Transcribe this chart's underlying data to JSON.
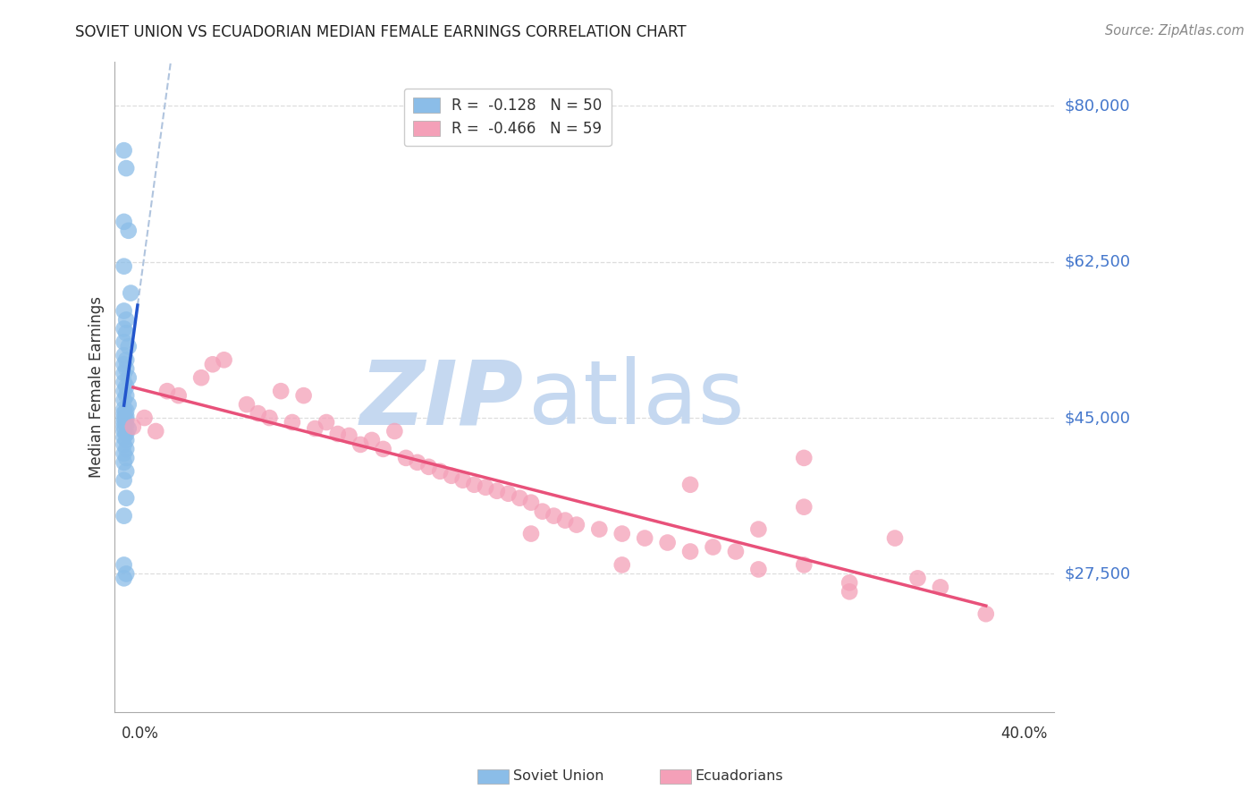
{
  "title": "SOVIET UNION VS ECUADORIAN MEDIAN FEMALE EARNINGS CORRELATION CHART",
  "source": "Source: ZipAtlas.com",
  "ylabel": "Median Female Earnings",
  "ytick_labels": [
    "$27,500",
    "$45,000",
    "$62,500",
    "$80,000"
  ],
  "ytick_values": [
    27500,
    45000,
    62500,
    80000
  ],
  "ymin": 12000,
  "ymax": 85000,
  "xmin": -0.003,
  "xmax": 0.41,
  "soviet_color": "#8bbde8",
  "ecuadorian_color": "#f4a0b8",
  "soviet_line_color": "#2255cc",
  "ecuadorian_line_color": "#e8517a",
  "dashed_line_color": "#b0c4de",
  "watermark_zip_color": "#c5d8f0",
  "watermark_atlas_color": "#c5d8f0",
  "background_color": "#ffffff",
  "grid_color": "#dddddd",
  "right_label_color": "#4477cc",
  "soviet_data": [
    [
      0.001,
      75000
    ],
    [
      0.002,
      73000
    ],
    [
      0.001,
      67000
    ],
    [
      0.003,
      66000
    ],
    [
      0.001,
      62000
    ],
    [
      0.004,
      59000
    ],
    [
      0.001,
      57000
    ],
    [
      0.002,
      56000
    ],
    [
      0.001,
      55000
    ],
    [
      0.002,
      54500
    ],
    [
      0.001,
      53500
    ],
    [
      0.003,
      53000
    ],
    [
      0.001,
      52000
    ],
    [
      0.002,
      51500
    ],
    [
      0.001,
      51000
    ],
    [
      0.002,
      50500
    ],
    [
      0.001,
      50000
    ],
    [
      0.003,
      49500
    ],
    [
      0.001,
      49000
    ],
    [
      0.002,
      48500
    ],
    [
      0.001,
      48000
    ],
    [
      0.002,
      47500
    ],
    [
      0.001,
      47000
    ],
    [
      0.003,
      46500
    ],
    [
      0.001,
      46000
    ],
    [
      0.002,
      45800
    ],
    [
      0.001,
      45500
    ],
    [
      0.002,
      45200
    ],
    [
      0.001,
      45000
    ],
    [
      0.002,
      44800
    ],
    [
      0.001,
      44500
    ],
    [
      0.002,
      44200
    ],
    [
      0.001,
      44000
    ],
    [
      0.003,
      43800
    ],
    [
      0.001,
      43500
    ],
    [
      0.002,
      43200
    ],
    [
      0.001,
      42800
    ],
    [
      0.002,
      42500
    ],
    [
      0.001,
      42000
    ],
    [
      0.002,
      41500
    ],
    [
      0.001,
      41000
    ],
    [
      0.002,
      40500
    ],
    [
      0.001,
      40000
    ],
    [
      0.002,
      39000
    ],
    [
      0.001,
      38000
    ],
    [
      0.002,
      36000
    ],
    [
      0.001,
      34000
    ],
    [
      0.001,
      28500
    ],
    [
      0.002,
      27500
    ],
    [
      0.001,
      27000
    ]
  ],
  "ecuadorian_data": [
    [
      0.005,
      44000
    ],
    [
      0.01,
      45000
    ],
    [
      0.015,
      43500
    ],
    [
      0.02,
      48000
    ],
    [
      0.025,
      47500
    ],
    [
      0.04,
      51000
    ],
    [
      0.045,
      51500
    ],
    [
      0.035,
      49500
    ],
    [
      0.07,
      48000
    ],
    [
      0.08,
      47500
    ],
    [
      0.055,
      46500
    ],
    [
      0.06,
      45500
    ],
    [
      0.065,
      45000
    ],
    [
      0.075,
      44500
    ],
    [
      0.09,
      44500
    ],
    [
      0.085,
      43800
    ],
    [
      0.095,
      43200
    ],
    [
      0.1,
      43000
    ],
    [
      0.11,
      42500
    ],
    [
      0.105,
      42000
    ],
    [
      0.115,
      41500
    ],
    [
      0.12,
      43500
    ],
    [
      0.125,
      40500
    ],
    [
      0.13,
      40000
    ],
    [
      0.135,
      39500
    ],
    [
      0.14,
      39000
    ],
    [
      0.145,
      38500
    ],
    [
      0.15,
      38000
    ],
    [
      0.155,
      37500
    ],
    [
      0.16,
      37200
    ],
    [
      0.165,
      36800
    ],
    [
      0.17,
      36500
    ],
    [
      0.175,
      36000
    ],
    [
      0.18,
      35500
    ],
    [
      0.185,
      34500
    ],
    [
      0.19,
      34000
    ],
    [
      0.195,
      33500
    ],
    [
      0.2,
      33000
    ],
    [
      0.21,
      32500
    ],
    [
      0.22,
      32000
    ],
    [
      0.23,
      31500
    ],
    [
      0.24,
      31000
    ],
    [
      0.25,
      37500
    ],
    [
      0.26,
      30500
    ],
    [
      0.27,
      30000
    ],
    [
      0.28,
      32500
    ],
    [
      0.3,
      28500
    ],
    [
      0.32,
      25500
    ],
    [
      0.34,
      31500
    ],
    [
      0.35,
      27000
    ],
    [
      0.36,
      26000
    ],
    [
      0.38,
      23000
    ],
    [
      0.25,
      30000
    ],
    [
      0.22,
      28500
    ],
    [
      0.18,
      32000
    ],
    [
      0.3,
      40500
    ],
    [
      0.32,
      26500
    ],
    [
      0.28,
      28000
    ],
    [
      0.3,
      35000
    ]
  ]
}
